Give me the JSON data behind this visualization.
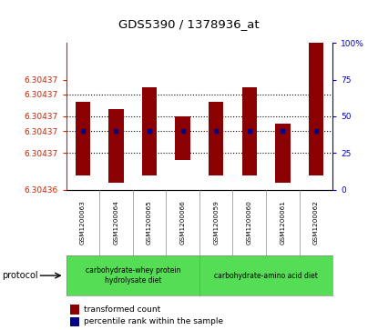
{
  "title": "GDS5390 / 1378936_at",
  "samples": [
    "GSM1200063",
    "GSM1200064",
    "GSM1200065",
    "GSM1200066",
    "GSM1200059",
    "GSM1200060",
    "GSM1200061",
    "GSM1200062"
  ],
  "bar_tops": [
    6.304372,
    6.304371,
    6.304374,
    6.30437,
    6.304372,
    6.304374,
    6.304369,
    6.30438
  ],
  "bar_bottoms": [
    6.304362,
    6.304361,
    6.304362,
    6.304364,
    6.304362,
    6.304362,
    6.304361,
    6.304362
  ],
  "percentile_y": [
    6.304368,
    6.304368,
    6.304368,
    6.304368,
    6.304368,
    6.304368,
    6.304368,
    6.304368
  ],
  "ylim_left": [
    6.30436,
    6.30438
  ],
  "ylim_right": [
    0,
    100
  ],
  "ytick_left_vals": [
    6.30436,
    6.304365,
    6.304368,
    6.30437,
    6.304373,
    6.304375
  ],
  "ytick_left_labels": [
    "6.30436",
    "6.30437",
    "6.30437",
    "6.30437",
    "6.30437",
    "6.30437"
  ],
  "ytick_right_vals": [
    0,
    25,
    50,
    75,
    100
  ],
  "ytick_right_labels": [
    "0",
    "25",
    "50",
    "75",
    "100%"
  ],
  "hlines": [
    6.304365,
    6.304368,
    6.30437,
    6.304373
  ],
  "bar_color": "#8B0000",
  "percentile_color": "#00008B",
  "axis_color_left": "#CC2200",
  "axis_color_right": "#0000CC",
  "sample_bg": "#DCDCDC",
  "group1_label": "carbohydrate-whey protein\nhydrolysate diet",
  "group2_label": "carbohydrate-amino acid diet",
  "group_color": "#55DD55",
  "legend1": "transformed count",
  "legend2": "percentile rank within the sample"
}
